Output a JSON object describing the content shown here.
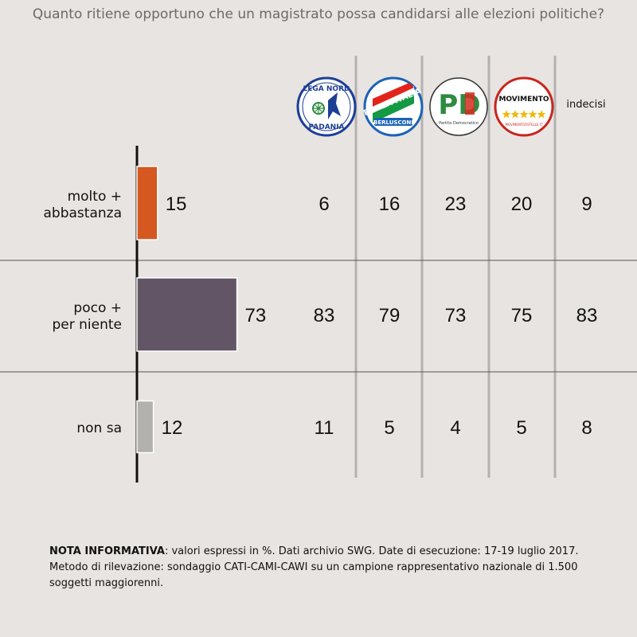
{
  "title": "Quanto ritiene opportuno che un magistrato possa candidarsi alle elezioni politiche?",
  "columns": [
    {
      "key": "lega",
      "icon": "lega-nord-logo",
      "text_top": "LEGA NORD",
      "text_bottom": "PADANIA"
    },
    {
      "key": "fi",
      "icon": "forza-italia-logo",
      "text_top": "FORZA ITALIA",
      "text_bottom": "BERLUSCONI"
    },
    {
      "key": "pd",
      "icon": "partito-democratico-logo",
      "text_top": "PD",
      "text_bottom": "Partito Democratico"
    },
    {
      "key": "m5s",
      "icon": "movimento-5-stelle-logo",
      "text_top": "MOVIMENTO",
      "text_bottom": "MOVIMENTO5STELLE.IT"
    },
    {
      "key": "indecisi",
      "label": "indecisi"
    }
  ],
  "rows": [
    {
      "label_1": "molto +",
      "label_2": "abbastanza",
      "color": "#d4581f"
    },
    {
      "label_1": "poco +",
      "label_2": "per niente",
      "color": "#625566"
    },
    {
      "label_1": "non sa",
      "label_2": "",
      "color": "#b2b1ad"
    }
  ],
  "chart_data": {
    "type": "bar",
    "orientation": "horizontal",
    "title": "Quanto ritiene opportuno che un magistrato possa candidarsi alle elezioni politiche?",
    "categories": [
      "molto + abbastanza",
      "poco + per niente",
      "non sa"
    ],
    "values": [
      15,
      73,
      12
    ],
    "table": {
      "columns": [
        "Lega Nord",
        "Forza Italia",
        "PD",
        "Movimento 5 Stelle",
        "indecisi"
      ],
      "values": [
        [
          6,
          16,
          23,
          20,
          9
        ],
        [
          83,
          79,
          73,
          75,
          83
        ],
        [
          11,
          5,
          4,
          5,
          8
        ]
      ]
    },
    "xlim": [
      0,
      100
    ],
    "grid": false,
    "legend": "none"
  },
  "note": {
    "bold": "NOTA INFORMATIVA",
    "text": ": valori espressi in %. Dati archivio SWG. Date di esecuzione: 17-19 luglio 2017. Metodo di rilevazione: sondaggio CATI-CAMI-CAWI su un campione rappresentativo nazionale di 1.500 soggetti maggiorenni."
  }
}
